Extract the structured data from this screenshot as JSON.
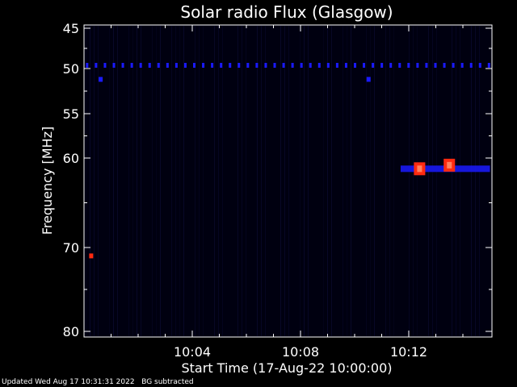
{
  "chart_data": {
    "type": "heatmap",
    "title": "Solar radio Flux (Glasgow)",
    "xlabel": "Start Time (17-Aug-22 10:00:00)",
    "ylabel": "Frequency [MHz]",
    "x_unit": "minutes after 10:00:00",
    "xlim": [
      0,
      15
    ],
    "ylim": [
      80,
      45
    ],
    "x_ticks": [
      {
        "x": 4,
        "label": "10:04"
      },
      {
        "x": 8,
        "label": "10:08"
      },
      {
        "x": 12,
        "label": "10:12"
      }
    ],
    "y_ticks": [
      {
        "y": 45,
        "label": "45"
      },
      {
        "y": 50,
        "label": "50"
      },
      {
        "y": 55,
        "label": "55"
      },
      {
        "y": 60,
        "label": "60"
      },
      {
        "y": 70,
        "label": "70"
      },
      {
        "y": 80,
        "label": "80"
      }
    ],
    "background_color": "#000010",
    "colors": {
      "low": "#0a0a40",
      "mid": "#1a1aff",
      "high": "#ff2a10",
      "peak": "#ff8060"
    },
    "features": [
      {
        "kind": "periodic-interference-line",
        "freq": 49.6,
        "x_start": 0,
        "x_end": 15,
        "spacing": 0.33,
        "intensity": "mid"
      },
      {
        "kind": "emission-band",
        "freq": 61.2,
        "x_start": 11.7,
        "x_end": 15,
        "intensity": "mid"
      },
      {
        "kind": "burst",
        "freq": 61.2,
        "x": 12.4,
        "intensity": "high"
      },
      {
        "kind": "burst",
        "freq": 60.8,
        "x": 13.5,
        "intensity": "high"
      },
      {
        "kind": "spot",
        "freq": 71.0,
        "x": 0.25,
        "intensity": "high"
      },
      {
        "kind": "spot",
        "freq": 51.2,
        "x": 0.6,
        "intensity": "mid"
      },
      {
        "kind": "spot",
        "freq": 51.2,
        "x": 10.5,
        "intensity": "mid"
      }
    ]
  },
  "footer": {
    "updated": "Updated Wed Aug 17 10:31:31 2022",
    "note": "BG subtracted"
  }
}
